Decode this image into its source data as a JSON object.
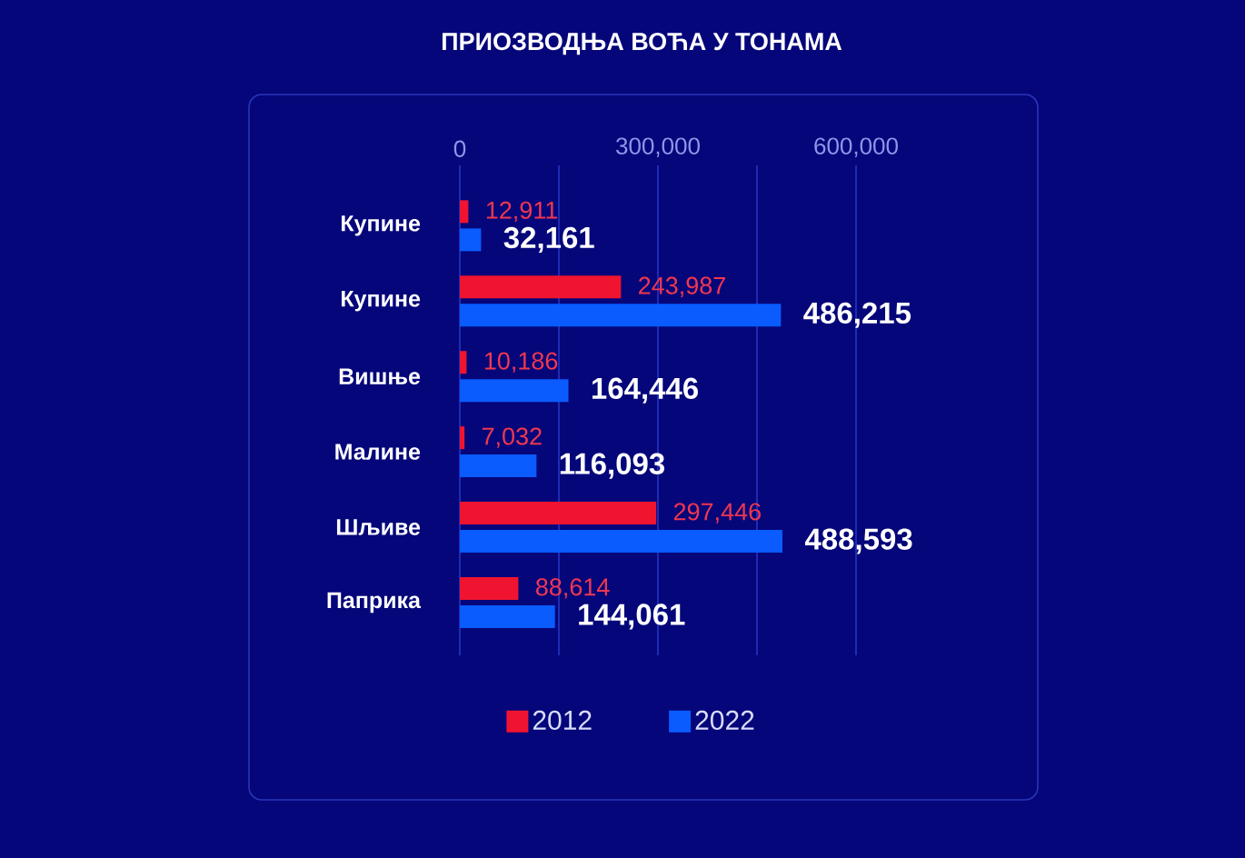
{
  "chart_data": {
    "type": "bar",
    "orientation": "horizontal",
    "title": "ПРИОЗВОДЊА ВОЋА У ТОНАМА",
    "categories": [
      "Купине",
      "Купине",
      "Вишње",
      "Малине",
      "Шљиве",
      "Паприка"
    ],
    "series": [
      {
        "name": "2012",
        "color": "#f01430",
        "values": [
          12911,
          243987,
          10186,
          7032,
          297446,
          88614
        ],
        "value_labels": [
          "12,911",
          "243,987",
          "10,186",
          "7,032",
          "297,446",
          "88,614"
        ]
      },
      {
        "name": "2022",
        "color": "#0a5cff",
        "values": [
          32161,
          486215,
          164446,
          116093,
          488593,
          144061
        ],
        "value_labels": [
          "32,161",
          "486,215",
          "164,446",
          "116,093",
          "488,593",
          "144,061"
        ]
      }
    ],
    "xlim": [
      0,
      600000
    ],
    "xticks": [
      0,
      {
        "value": 150000,
        "label": null
      },
      {
        "value": 300000,
        "label": "300,000"
      },
      {
        "value": 450000,
        "label": null
      },
      {
        "value": 600000,
        "label": "600,000"
      }
    ],
    "grid": "x",
    "legend": "bottom"
  }
}
